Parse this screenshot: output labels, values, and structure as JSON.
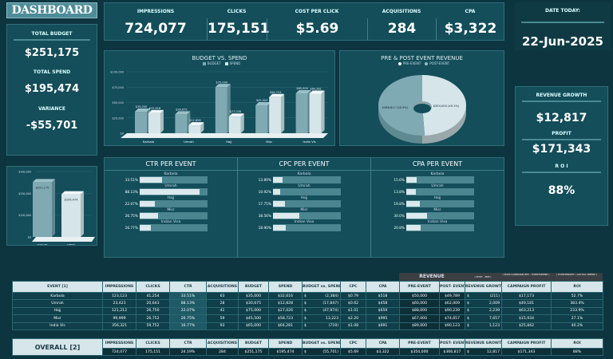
{
  "title": "DASHBOARD",
  "left_kpis": {
    "total_budget_label": "TOTAL BUDGET",
    "total_budget": "$251,175",
    "total_spend_label": "TOTAL SPEND",
    "total_spend": "$195,474",
    "variance_label": "VARIANCE",
    "variance": "-$55,701"
  },
  "header_kpis": [
    {
      "label": "IMPRESSIONS",
      "value": "724,077"
    },
    {
      "label": "CLICKS",
      "value": "175,151"
    },
    {
      "label": "COST PER CLICK",
      "value": "$5.69"
    },
    {
      "label": "ACQUISITIONS",
      "value": "284"
    },
    {
      "label": "CPA",
      "value": "$3,322"
    }
  ],
  "date": {
    "label": "DATE TODAY:",
    "value": "22-Jun-2025"
  },
  "right_kpis": {
    "growth_label": "REVENUE GROWTH",
    "growth": "$12,817",
    "profit_label": "PROFIT",
    "profit": "$171,343",
    "roi_label": "R O I",
    "roi": "88%"
  },
  "colors": {
    "budget": "#7fa9b3",
    "spend": "#d5e5e9",
    "bg": "#0d3540",
    "panel": "#134e5a"
  },
  "chart_data": [
    {
      "type": "bar",
      "title": "BUDGET VS. SPEND",
      "categories": [
        "Karbala",
        "Umrah",
        "Hajj",
        "Misr",
        "India Vis"
      ],
      "series": [
        {
          "name": "BUDGET",
          "values": [
            35000,
            30675,
            75000,
            45500,
            65000
          ],
          "labels": [
            "$35,000",
            "$30,675",
            "$75,000",
            "$45,500",
            "$65,000"
          ]
        },
        {
          "name": "SPEND",
          "values": [
            32616,
            12828,
            27026,
            58723,
            64281
          ],
          "labels": [
            "$32,616",
            "$12,828",
            "$27,026",
            "$58,723",
            "$64,281"
          ]
        }
      ],
      "ylim": [
        0,
        100000
      ],
      "yticks": [
        "$0",
        "$25,000",
        "$50,000",
        "$75,000",
        "$100,000"
      ],
      "grid": true,
      "legend": "top"
    },
    {
      "type": "pie",
      "title": "PRE & POST EVENT REVENUE",
      "labels": [
        "PRE-EVENT",
        "POST-EVENT"
      ],
      "values": [
        354000,
        366817
      ],
      "data_labels": [
        "$354,000 (49.1%)",
        "$366,817 (50.9%)"
      ],
      "legend": "top"
    },
    {
      "type": "bar",
      "categories": [
        "BUDGET",
        "SPEND"
      ],
      "values": [
        251175,
        195474
      ],
      "data_labels": [
        "$251,175",
        "$195,474"
      ],
      "ylim": [
        0,
        300000
      ],
      "yticks": [
        "$0",
        "$100,000",
        "$200,000",
        "$300,000"
      ],
      "grid": true
    },
    {
      "type": "bar",
      "title": "CTR PER EVENT",
      "categories": [
        "Karbola",
        "Umrah",
        "Hajj",
        "Misr",
        "Indian Visa"
      ],
      "values": [
        33.51,
        88.13,
        22.07,
        26.75,
        16.77
      ],
      "data_labels": [
        "33.51%",
        "88.13%",
        "22.07%",
        "26.75%",
        "16.77%"
      ]
    },
    {
      "type": "bar",
      "title": "CPC PER EVENT",
      "categories": [
        "Karbola",
        "Umrah",
        "Hajj",
        "Misr",
        "Indian Visa"
      ],
      "values": [
        13.89,
        10.92,
        17.75,
        38.56,
        18.9
      ],
      "data_labels": [
        "13.89%",
        "10.92%",
        "17.75%",
        "38.56%",
        "18.90%"
      ]
    },
    {
      "type": "bar",
      "title": "CPA PER EVENT",
      "categories": [
        "Karbola",
        "Umrah",
        "Hajj",
        "Misr",
        "Indian Visa"
      ],
      "values": [
        15.6,
        13.8,
        19.8,
        30.0,
        20.8
      ],
      "data_labels": [
        "15.6%",
        "13.8%",
        "19.8%",
        "30.0%",
        "20.8%"
      ]
    }
  ],
  "table": {
    "group_headers": {
      "revenue": "REVENUE",
      "growth_note": "( POST - PRE )",
      "profit_note": "( POST-CAMPAIGN REV - EVENTSPEND )",
      "roi_note": "( EVENTPROFIT / ACTUAL SPEND )"
    },
    "headers": [
      "EVENT [1]",
      "IMPRESSIONS",
      "CLICKS",
      "CTR",
      "ACQUISITIONS",
      "BUDGET",
      "SPEND",
      "BUDGET vs. SPEND",
      "CPC",
      "CPA",
      "PRE-EVENT",
      "POST- EVENT",
      "REVENUE GROWTH",
      "CAMPAIGN PROFIT",
      "ROI"
    ],
    "rows": [
      [
        "Karbola",
        "123,123",
        "41,254",
        "33.51%",
        "63",
        "$35,000",
        "$32,616",
        "(2,384)",
        "$0.79",
        "$518",
        "$50,000",
        "$49,789",
        "(211)",
        "$17,173",
        "52.7%"
      ],
      [
        "Umrah",
        "23,423",
        "20,643",
        "88.13%",
        "28",
        "$30,675",
        "$12,828",
        "(17,847)",
        "$0.62",
        "$458",
        "$60,000",
        "$62,009",
        "2,009",
        "$49,181",
        "383.4%"
      ],
      [
        "Hajj",
        "121,212",
        "26,750",
        "22.07%",
        "41",
        "$75,000",
        "$27,026",
        "(47,974)",
        "$1.01",
        "$659",
        "$88,000",
        "$90,239",
        "2,239",
        "$63,213",
        "233.9%"
      ],
      [
        "Misr",
        "99,999",
        "26,752",
        "26.75%",
        "59",
        "$45,500",
        "$58,723",
        "13,223",
        "$2.20",
        "$995",
        "$67,000",
        "$74,657",
        "7,657",
        "$15,934",
        "27.1%"
      ],
      [
        "India Vis",
        "356,321",
        "59,752",
        "16.77%",
        "93",
        "$65,000",
        "$64,281",
        "(719)",
        "$1.08",
        "$691",
        "$89,000",
        "$90,123",
        "1,123",
        "$25,842",
        "40.2%"
      ]
    ],
    "currency": "$",
    "overall_label": "OVERALL [2]",
    "overall": [
      "724,077",
      "175,151",
      "24.19%",
      "284",
      "$251,175",
      "$195,474",
      "(55,701)",
      "$5.69",
      "$3,322",
      "$354,000",
      "$366,817",
      "12,817",
      "$171,343",
      "88%"
    ]
  }
}
